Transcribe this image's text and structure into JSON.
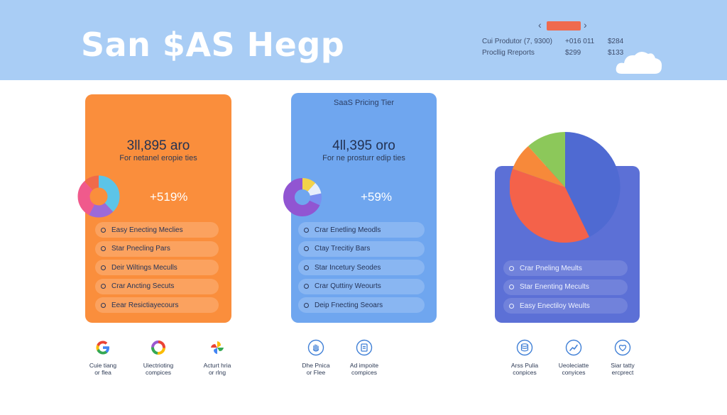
{
  "header": {
    "brand": "San $AS Hegp",
    "line1_label": "Cui Produtor (7, 9300)",
    "line1_value_a": "+016 011",
    "line1_value_b": "$284",
    "line2_label": "Procllig Rreports",
    "line2_value_a": "$299",
    "line2_value_b": "$133"
  },
  "cards": {
    "orange": {
      "price": "3ll,895 aro",
      "subtitle": "For netanel eropie ties",
      "stat": "+519%",
      "features": [
        "Easy Enecting Meclies",
        "Star Pnecling Pars",
        "Deir Wiltings Meculls",
        "Crar Ancting Secuts",
        "Eear Resictiayecours"
      ]
    },
    "blue": {
      "title": "SaaS Pricing Tier",
      "price": "4ll,395 oro",
      "subtitle": "For ne prosturr edip ties",
      "stat": "+59%",
      "features": [
        "Crar Enetling Meodls",
        "Ctay Trecitiy Bars",
        "Star Incetury Seodes",
        "Crar Quttiny Weourts",
        "Deip Fnecting Seoars"
      ]
    },
    "purple": {
      "features": [
        "Crar Pneling Meults",
        "Star Enenting Mecults",
        "Easy Enectiloy Weults"
      ]
    }
  },
  "integrations": [
    {
      "icon": "google-logo-icon",
      "label1": "Cuie tiang",
      "label2": "or flea"
    },
    {
      "icon": "ring-logo-icon",
      "label1": "Uiectrioting",
      "label2": "compices"
    },
    {
      "icon": "pinwheel-logo-icon",
      "label1": "Acturt hria",
      "label2": "or rlng"
    },
    {
      "icon": "hand-icon",
      "label1": "Dhe Pnica",
      "label2": "or Flee"
    },
    {
      "icon": "clipboard-icon",
      "label1": "Ad impoite",
      "label2": "compices"
    },
    {
      "icon": "database-icon",
      "label1": "Arss Pulia",
      "label2": "conpices"
    },
    {
      "icon": "chart-icon",
      "label1": "Ueoleciatte",
      "label2": "conyices"
    },
    {
      "icon": "heart-shield-icon",
      "label1": "Siar tatty",
      "label2": "ercprect"
    }
  ],
  "colors": {
    "header_bg": "#a9cdf5",
    "orange_card": "#fa8e3c",
    "blue_card": "#6fa6ef",
    "purple_card": "#5c70d6",
    "accent_red": "#ef6a4e"
  }
}
